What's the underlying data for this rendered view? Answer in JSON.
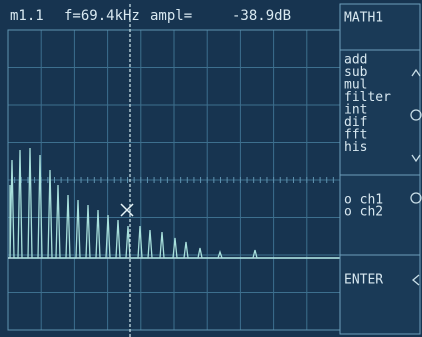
{
  "header": {
    "marker": "m1.1",
    "frequency": "f=69.4kHz",
    "amplitude_label": "ampl=",
    "amplitude": "-38.9dB"
  },
  "menu": {
    "title": "MATH1",
    "items": [
      "add",
      "sub",
      "mul",
      "filter",
      "int",
      "dif",
      "fft",
      "his"
    ],
    "sources": [
      "o ch1",
      "o ch2"
    ],
    "enter": "ENTER"
  }
}
